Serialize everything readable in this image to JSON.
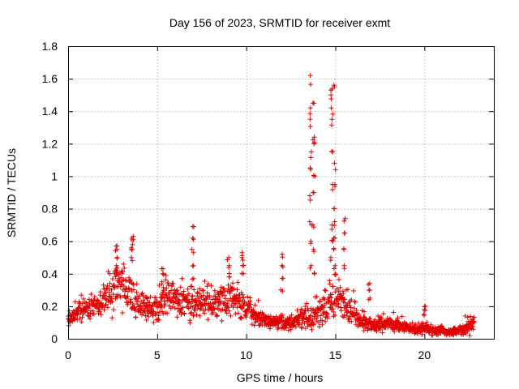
{
  "chart_data": {
    "type": "scatter",
    "title": "Day 156 of 2023, SRMTID for receiver exmt",
    "xlabel": "GPS time / hours",
    "ylabel": "SRMTID / TECUs",
    "xlim": [
      0,
      23.9
    ],
    "ylim": [
      0,
      1.8
    ],
    "x_ticks": [
      0,
      5,
      10,
      15,
      20
    ],
    "y_ticks": [
      0,
      0.2,
      0.4,
      0.6,
      0.8,
      1,
      1.2,
      1.4,
      1.6,
      1.8
    ],
    "x_tick_labels": [
      "0",
      "5",
      "10",
      "15",
      "20"
    ],
    "y_tick_labels": [
      "0",
      "0.2",
      "0.4",
      "0.6",
      "0.8",
      "1",
      "1.2",
      "1.4",
      "1.6",
      "1.8"
    ],
    "grid": true,
    "marker": "plus",
    "color": "#e00000",
    "series": [
      {
        "name": "SRMTID",
        "envelope_x": [
          0,
          0.5,
          1,
          1.5,
          2,
          2.5,
          3,
          3.5,
          4,
          4.5,
          5,
          5.5,
          6,
          6.5,
          7,
          7.5,
          8,
          8.5,
          9,
          9.5,
          10,
          10.5,
          11,
          11.5,
          12,
          12.5,
          13,
          13.5,
          14,
          14.5,
          15,
          15.5,
          16,
          16.5,
          17,
          17.5,
          18,
          18.5,
          19,
          19.5,
          20,
          20.5,
          21,
          21.5,
          22,
          22.5,
          22.8
        ],
        "envelope_center": [
          0.1,
          0.17,
          0.19,
          0.2,
          0.24,
          0.28,
          0.36,
          0.28,
          0.2,
          0.18,
          0.2,
          0.26,
          0.25,
          0.23,
          0.22,
          0.24,
          0.22,
          0.22,
          0.26,
          0.24,
          0.2,
          0.14,
          0.11,
          0.1,
          0.09,
          0.1,
          0.12,
          0.14,
          0.16,
          0.2,
          0.26,
          0.22,
          0.16,
          0.1,
          0.09,
          0.09,
          0.1,
          0.08,
          0.07,
          0.06,
          0.07,
          0.05,
          0.05,
          0.04,
          0.05,
          0.07,
          0.11
        ],
        "envelope_spread": [
          0.06,
          0.07,
          0.08,
          0.08,
          0.1,
          0.13,
          0.16,
          0.14,
          0.09,
          0.08,
          0.1,
          0.12,
          0.12,
          0.1,
          0.11,
          0.1,
          0.1,
          0.1,
          0.13,
          0.12,
          0.09,
          0.06,
          0.05,
          0.05,
          0.05,
          0.05,
          0.06,
          0.08,
          0.1,
          0.12,
          0.14,
          0.12,
          0.09,
          0.05,
          0.04,
          0.05,
          0.05,
          0.04,
          0.03,
          0.03,
          0.04,
          0.03,
          0.03,
          0.02,
          0.03,
          0.05,
          0.06
        ],
        "spikes": [
          {
            "x": 2.7,
            "y": [
              0.4,
              0.45,
              0.5,
              0.55,
              0.57
            ]
          },
          {
            "x": 3.6,
            "y": [
              0.5,
              0.55,
              0.58,
              0.61,
              0.63
            ]
          },
          {
            "x": 5.3,
            "y": [
              0.35,
              0.4,
              0.43
            ]
          },
          {
            "x": 7.0,
            "y": [
              0.37,
              0.45,
              0.55,
              0.62,
              0.69
            ]
          },
          {
            "x": 9.0,
            "y": [
              0.38,
              0.45,
              0.5
            ]
          },
          {
            "x": 9.8,
            "y": [
              0.4,
              0.45,
              0.5,
              0.53
            ]
          },
          {
            "x": 12.0,
            "y": [
              0.3,
              0.37,
              0.45,
              0.52
            ]
          },
          {
            "x": 13.6,
            "y": [
              0.45,
              0.6,
              0.72,
              0.88,
              1.05,
              1.15,
              1.35,
              1.42,
              1.62
            ]
          },
          {
            "x": 13.8,
            "y": [
              0.4,
              0.55,
              0.7,
              0.9,
              1.0,
              1.2,
              1.24,
              1.45
            ]
          },
          {
            "x": 14.8,
            "y": [
              0.5,
              0.6,
              0.7,
              0.95,
              1.15,
              1.35,
              1.42,
              1.5,
              1.53
            ]
          },
          {
            "x": 14.95,
            "y": [
              0.45,
              0.55,
              0.62,
              0.72,
              0.8,
              0.95,
              1.08,
              1.55
            ]
          },
          {
            "x": 15.5,
            "y": [
              0.45,
              0.55,
              0.65,
              0.74
            ]
          },
          {
            "x": 16.9,
            "y": [
              0.25,
              0.3,
              0.34
            ]
          },
          {
            "x": 20.0,
            "y": [
              0.15,
              0.18,
              0.2
            ]
          }
        ]
      }
    ]
  }
}
